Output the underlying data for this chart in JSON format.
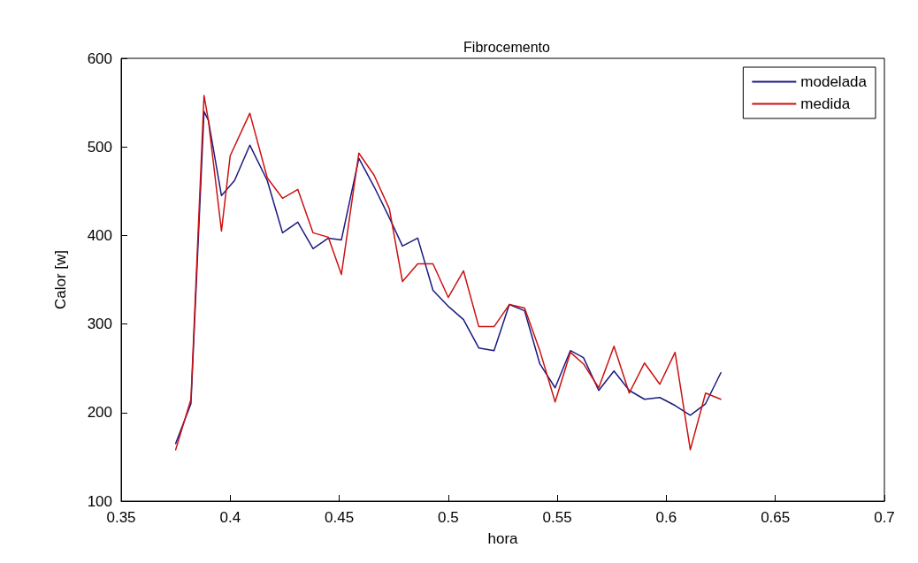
{
  "chart_data": {
    "type": "line",
    "title": "Fibrocemento",
    "xlabel": "hora",
    "ylabel": "Calor [w]",
    "xlim": [
      0.35,
      0.7
    ],
    "xticks": [
      0.35,
      0.4,
      0.45,
      0.5,
      0.55,
      0.6,
      0.65,
      0.7
    ],
    "ylim": [
      100,
      600
    ],
    "yticks": [
      100,
      200,
      300,
      400,
      500,
      600
    ],
    "grid": false,
    "legend": "top right",
    "marker": "none",
    "line_style": "solid",
    "series": [
      {
        "name": "modelada",
        "color": "#1a1a80",
        "x": [
          0.375,
          0.382,
          0.388,
          0.39,
          0.396,
          0.402,
          0.409,
          0.417,
          0.424,
          0.431,
          0.438,
          0.445,
          0.451,
          0.459,
          0.466,
          0.473,
          0.479,
          0.486,
          0.493,
          0.5,
          0.507,
          0.514,
          0.521,
          0.528,
          0.535,
          0.542,
          0.549,
          0.556,
          0.562,
          0.569,
          0.576,
          0.583,
          0.59,
          0.597,
          0.604,
          0.611,
          0.618,
          0.625
        ],
        "values": [
          165,
          210,
          540,
          530,
          445,
          462,
          502,
          462,
          403,
          415,
          385,
          397,
          395,
          487,
          455,
          420,
          388,
          397,
          338,
          320,
          305,
          273,
          270,
          322,
          315,
          255,
          228,
          270,
          262,
          225,
          247,
          225,
          215,
          217,
          208,
          197,
          210,
          245
        ]
      },
      {
        "name": "medida",
        "color": "#cc1111",
        "x": [
          0.375,
          0.382,
          0.388,
          0.39,
          0.396,
          0.4,
          0.409,
          0.417,
          0.424,
          0.431,
          0.438,
          0.445,
          0.451,
          0.459,
          0.466,
          0.473,
          0.479,
          0.486,
          0.493,
          0.5,
          0.507,
          0.514,
          0.521,
          0.528,
          0.535,
          0.542,
          0.549,
          0.556,
          0.562,
          0.569,
          0.576,
          0.583,
          0.59,
          0.597,
          0.604,
          0.611,
          0.618,
          0.625
        ],
        "values": [
          158,
          215,
          558,
          530,
          405,
          490,
          538,
          465,
          442,
          452,
          403,
          398,
          356,
          493,
          468,
          430,
          348,
          368,
          368,
          330,
          360,
          297,
          297,
          322,
          318,
          270,
          212,
          268,
          255,
          228,
          275,
          222,
          256,
          232,
          268,
          158,
          222,
          215
        ]
      }
    ]
  }
}
